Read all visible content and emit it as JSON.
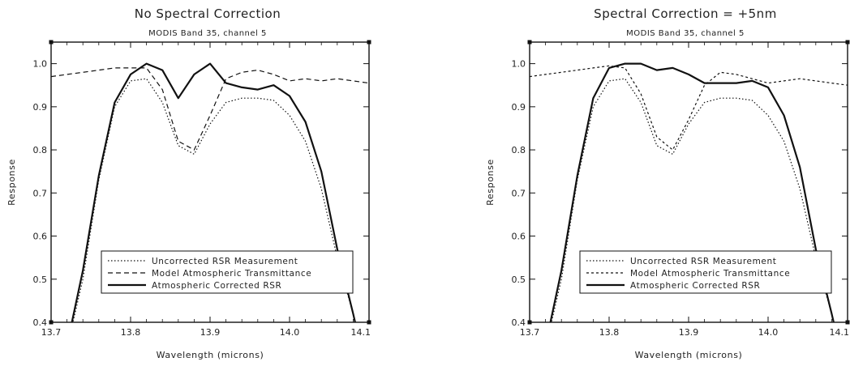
{
  "chart_data": [
    {
      "type": "line",
      "title": "No Spectral Correction",
      "subtitle": "MODIS Band 35, channel 5",
      "xlabel": "Wavelength (microns)",
      "ylabel": "Response",
      "xlim": [
        13.7,
        14.1
      ],
      "ylim": [
        0.4,
        1.05
      ],
      "x_ticks": [
        "13.7",
        "13.8",
        "13.9",
        "14.0",
        "14.1"
      ],
      "y_ticks": [
        "0.4",
        "0.5",
        "0.6",
        "0.7",
        "0.8",
        "0.9",
        "1.0"
      ],
      "legend_position": "bottom-center",
      "series": [
        {
          "name": "Uncorrected RSR Measurement",
          "style": "dotted",
          "x": [
            13.725,
            13.74,
            13.76,
            13.78,
            13.8,
            13.82,
            13.84,
            13.86,
            13.88,
            13.9,
            13.92,
            13.94,
            13.96,
            13.98,
            14.0,
            14.02,
            14.04,
            14.06,
            14.08,
            14.085
          ],
          "y": [
            0.38,
            0.5,
            0.73,
            0.9,
            0.96,
            0.965,
            0.91,
            0.81,
            0.79,
            0.86,
            0.91,
            0.92,
            0.92,
            0.915,
            0.88,
            0.82,
            0.71,
            0.55,
            0.42,
            0.38
          ]
        },
        {
          "name": "Model Atmospheric Transmittance",
          "style": "dashed",
          "x": [
            13.7,
            13.72,
            13.74,
            13.76,
            13.78,
            13.8,
            13.82,
            13.84,
            13.86,
            13.88,
            13.9,
            13.92,
            13.94,
            13.96,
            13.98,
            14.0,
            14.02,
            14.04,
            14.06,
            14.08,
            14.1
          ],
          "y": [
            0.97,
            0.975,
            0.98,
            0.985,
            0.99,
            0.99,
            0.99,
            0.94,
            0.82,
            0.8,
            0.88,
            0.965,
            0.98,
            0.985,
            0.975,
            0.96,
            0.965,
            0.96,
            0.965,
            0.96,
            0.955
          ]
        },
        {
          "name": "Atmospheric Corrected RSR",
          "style": "solid",
          "x": [
            13.725,
            13.74,
            13.76,
            13.78,
            13.8,
            13.82,
            13.84,
            13.86,
            13.88,
            13.9,
            13.92,
            13.94,
            13.96,
            13.98,
            14.0,
            14.02,
            14.04,
            14.06,
            14.08,
            14.085
          ],
          "y": [
            0.39,
            0.52,
            0.74,
            0.91,
            0.975,
            1.0,
            0.985,
            0.92,
            0.975,
            1.0,
            0.955,
            0.945,
            0.94,
            0.95,
            0.925,
            0.865,
            0.75,
            0.57,
            0.42,
            0.38
          ]
        }
      ]
    },
    {
      "type": "line",
      "title": "Spectral Correction = +5nm",
      "subtitle": "MODIS Band 35, channel 5",
      "xlabel": "Wavelength (microns)",
      "ylabel": "Response",
      "xlim": [
        13.7,
        14.1
      ],
      "ylim": [
        0.4,
        1.05
      ],
      "x_ticks": [
        "13.7",
        "13.8",
        "13.9",
        "14.0",
        "14.1"
      ],
      "y_ticks": [
        "0.4",
        "0.5",
        "0.6",
        "0.7",
        "0.8",
        "0.9",
        "1.0"
      ],
      "legend_position": "bottom-center",
      "series": [
        {
          "name": "Uncorrected RSR Measurement",
          "style": "dotted",
          "x": [
            13.725,
            13.74,
            13.76,
            13.78,
            13.8,
            13.82,
            13.84,
            13.86,
            13.88,
            13.9,
            13.92,
            13.94,
            13.96,
            13.98,
            14.0,
            14.02,
            14.04,
            14.06,
            14.08,
            14.085
          ],
          "y": [
            0.38,
            0.5,
            0.73,
            0.9,
            0.96,
            0.965,
            0.91,
            0.81,
            0.79,
            0.86,
            0.91,
            0.92,
            0.92,
            0.915,
            0.88,
            0.82,
            0.71,
            0.55,
            0.42,
            0.38
          ]
        },
        {
          "name": "Model Atmospheric Transmittance",
          "style": "dashed",
          "x": [
            13.7,
            13.72,
            13.74,
            13.76,
            13.78,
            13.8,
            13.82,
            13.84,
            13.86,
            13.88,
            13.9,
            13.92,
            13.94,
            13.96,
            13.98,
            14.0,
            14.02,
            14.04,
            14.06,
            14.08,
            14.1
          ],
          "y": [
            0.97,
            0.975,
            0.98,
            0.985,
            0.99,
            0.995,
            0.99,
            0.93,
            0.83,
            0.8,
            0.87,
            0.95,
            0.98,
            0.975,
            0.965,
            0.955,
            0.96,
            0.965,
            0.96,
            0.955,
            0.95
          ]
        },
        {
          "name": "Atmospheric Corrected RSR",
          "style": "solid",
          "x": [
            13.725,
            13.74,
            13.76,
            13.78,
            13.8,
            13.82,
            13.84,
            13.86,
            13.88,
            13.9,
            13.92,
            13.94,
            13.96,
            13.98,
            14.0,
            14.02,
            14.04,
            14.06,
            14.08,
            14.085
          ],
          "y": [
            0.39,
            0.52,
            0.74,
            0.92,
            0.99,
            1.0,
            1.0,
            0.985,
            0.99,
            0.975,
            0.955,
            0.955,
            0.955,
            0.96,
            0.945,
            0.88,
            0.76,
            0.57,
            0.42,
            0.38
          ]
        }
      ]
    }
  ]
}
